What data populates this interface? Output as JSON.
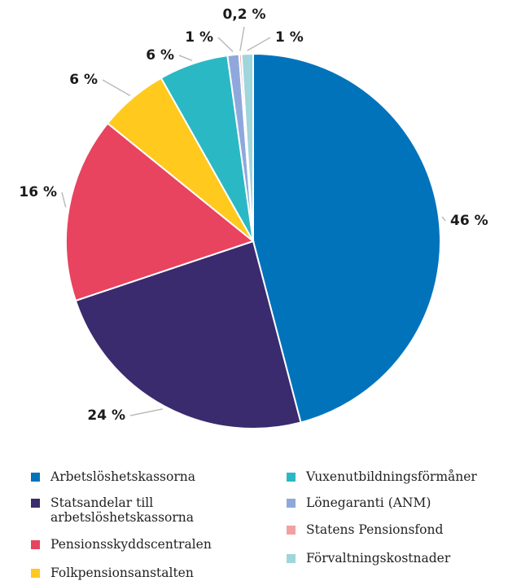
{
  "chart_data": {
    "type": "pie",
    "categories": [
      "Arbetslöshetskassorna",
      "Statsandelar till arbetslöshetskassorna",
      "Pensionsskyddscentralen",
      "Folkpensionsanstalten",
      "Vuxenutbildningsförmåner",
      "Lönegaranti (ANM)",
      "Statens Pensionsfond",
      "Förvaltningskostnader"
    ],
    "values": [
      46,
      24,
      16,
      6,
      6,
      1,
      0.2,
      1
    ],
    "value_labels": [
      "46 %",
      "24 %",
      "16 %",
      "6 %",
      "6 %",
      "1 %",
      "0,2 %",
      "1 %"
    ],
    "colors": [
      "#0073bb",
      "#3a2a6e",
      "#e8435f",
      "#ffc91e",
      "#2bb8c5",
      "#8fa8dc",
      "#f4a0a0",
      "#9fd6db"
    ]
  }
}
